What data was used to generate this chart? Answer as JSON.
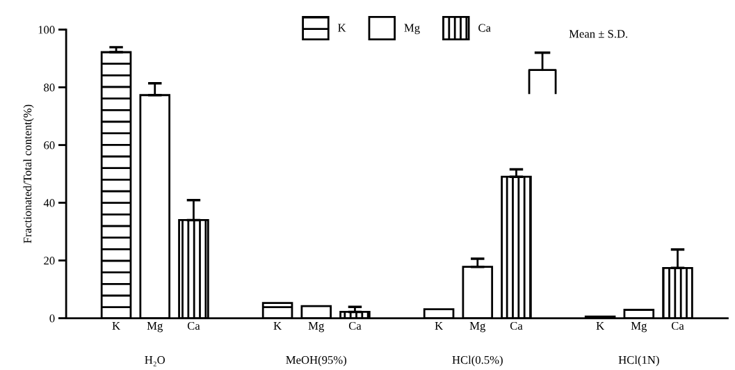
{
  "chart_data": {
    "type": "bar",
    "ylabel": "Fractionated/Total content(%)",
    "categories": [
      "H₂O",
      "MeOH(95%)",
      "HCl(0.5%)",
      "HCl(1N)"
    ],
    "series": [
      {
        "name": "K",
        "color": "#000000",
        "values": [
          92.2,
          5.3,
          3.1,
          0.6
        ],
        "errors": [
          [
            92.2,
            93.9
          ],
          null,
          null,
          null
        ]
      },
      {
        "name": "Mg",
        "color": "#ffffff",
        "values": [
          77.3,
          4.2,
          17.8,
          2.9
        ],
        "errors": [
          [
            77.3,
            81.4
          ],
          null,
          [
            17.8,
            20.6
          ],
          null
        ]
      },
      {
        "name": "Ca",
        "color": "#000000",
        "values": [
          34.0,
          2.2,
          49.0,
          17.4
        ],
        "errors": [
          [
            34.0,
            40.9
          ],
          [
            2.2,
            3.9
          ],
          [
            49.0,
            51.6
          ],
          [
            17.4,
            23.8
          ]
        ]
      }
    ],
    "ylim": [
      0,
      100
    ],
    "yticks": [
      0,
      20,
      40,
      60,
      80,
      100
    ],
    "legend": "top",
    "grid": false,
    "annotations": [
      "Mean ± S.D."
    ]
  }
}
